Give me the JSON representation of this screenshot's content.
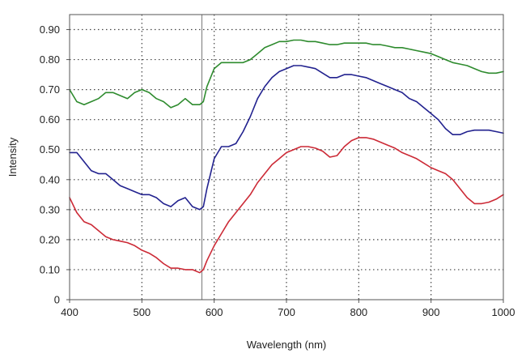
{
  "chart_data": {
    "type": "line",
    "title": "",
    "xlabel": "Wavelength (nm)",
    "ylabel": "Intensity",
    "xlim": [
      400,
      1000
    ],
    "ylim": [
      0,
      0.95
    ],
    "xticks": [
      400,
      500,
      600,
      700,
      800,
      900,
      1000
    ],
    "xtick_labels": [
      "400",
      "500",
      "600",
      "700",
      "800",
      "900",
      "1000"
    ],
    "yticks": [
      0,
      0.1,
      0.2,
      0.3,
      0.4,
      0.5,
      0.6,
      0.7,
      0.8,
      0.9
    ],
    "ytick_labels": [
      "0",
      "0.10",
      "0.20",
      "0.30",
      "0.40",
      "0.50",
      "0.60",
      "0.70",
      "0.80",
      "0.90"
    ],
    "grid": true,
    "reference_line_x": 583,
    "series": [
      {
        "color": "#2e8b2e",
        "x": [
          400,
          410,
          420,
          430,
          440,
          450,
          460,
          470,
          480,
          490,
          500,
          510,
          520,
          530,
          540,
          550,
          560,
          570,
          580,
          585,
          590,
          600,
          610,
          620,
          630,
          640,
          650,
          660,
          670,
          680,
          690,
          700,
          710,
          720,
          730,
          740,
          750,
          760,
          770,
          780,
          790,
          800,
          810,
          820,
          830,
          840,
          850,
          860,
          870,
          880,
          890,
          900,
          910,
          920,
          930,
          940,
          950,
          960,
          970,
          980,
          990,
          1000
        ],
        "y": [
          0.7,
          0.66,
          0.65,
          0.66,
          0.67,
          0.69,
          0.69,
          0.68,
          0.67,
          0.69,
          0.7,
          0.69,
          0.67,
          0.66,
          0.64,
          0.65,
          0.67,
          0.65,
          0.65,
          0.66,
          0.71,
          0.77,
          0.79,
          0.79,
          0.79,
          0.79,
          0.8,
          0.82,
          0.84,
          0.85,
          0.86,
          0.86,
          0.865,
          0.865,
          0.86,
          0.86,
          0.855,
          0.85,
          0.85,
          0.855,
          0.855,
          0.855,
          0.855,
          0.85,
          0.85,
          0.845,
          0.84,
          0.84,
          0.835,
          0.83,
          0.825,
          0.82,
          0.81,
          0.8,
          0.79,
          0.785,
          0.78,
          0.77,
          0.76,
          0.755,
          0.755,
          0.76
        ]
      },
      {
        "color": "#22228f",
        "x": [
          400,
          410,
          420,
          430,
          440,
          450,
          460,
          470,
          480,
          490,
          500,
          510,
          520,
          530,
          540,
          550,
          560,
          570,
          580,
          585,
          590,
          600,
          610,
          620,
          630,
          640,
          650,
          660,
          670,
          680,
          690,
          700,
          710,
          720,
          730,
          740,
          750,
          760,
          770,
          780,
          790,
          800,
          810,
          820,
          830,
          840,
          850,
          860,
          870,
          880,
          890,
          900,
          910,
          920,
          930,
          940,
          950,
          960,
          970,
          980,
          990,
          1000
        ],
        "y": [
          0.49,
          0.49,
          0.46,
          0.43,
          0.42,
          0.42,
          0.4,
          0.38,
          0.37,
          0.36,
          0.35,
          0.35,
          0.34,
          0.32,
          0.31,
          0.33,
          0.34,
          0.31,
          0.3,
          0.31,
          0.37,
          0.47,
          0.51,
          0.51,
          0.52,
          0.56,
          0.61,
          0.67,
          0.71,
          0.74,
          0.76,
          0.77,
          0.78,
          0.78,
          0.775,
          0.77,
          0.755,
          0.74,
          0.74,
          0.75,
          0.75,
          0.745,
          0.74,
          0.73,
          0.72,
          0.71,
          0.7,
          0.69,
          0.67,
          0.66,
          0.64,
          0.62,
          0.6,
          0.57,
          0.55,
          0.55,
          0.56,
          0.565,
          0.565,
          0.565,
          0.56,
          0.555
        ]
      },
      {
        "color": "#cc2a36",
        "x": [
          400,
          410,
          420,
          430,
          440,
          450,
          460,
          470,
          480,
          490,
          500,
          510,
          520,
          530,
          540,
          550,
          560,
          570,
          580,
          585,
          590,
          600,
          610,
          620,
          630,
          640,
          650,
          660,
          670,
          680,
          690,
          700,
          710,
          720,
          730,
          740,
          750,
          760,
          770,
          780,
          790,
          800,
          810,
          820,
          830,
          840,
          850,
          860,
          870,
          880,
          890,
          900,
          910,
          920,
          930,
          940,
          950,
          960,
          970,
          980,
          990,
          1000
        ],
        "y": [
          0.34,
          0.29,
          0.26,
          0.25,
          0.23,
          0.21,
          0.2,
          0.195,
          0.19,
          0.18,
          0.165,
          0.155,
          0.14,
          0.12,
          0.105,
          0.105,
          0.1,
          0.1,
          0.09,
          0.1,
          0.13,
          0.18,
          0.22,
          0.26,
          0.29,
          0.32,
          0.35,
          0.39,
          0.42,
          0.45,
          0.47,
          0.49,
          0.5,
          0.51,
          0.51,
          0.505,
          0.495,
          0.475,
          0.48,
          0.51,
          0.53,
          0.54,
          0.54,
          0.535,
          0.525,
          0.515,
          0.505,
          0.49,
          0.48,
          0.47,
          0.455,
          0.44,
          0.43,
          0.42,
          0.4,
          0.37,
          0.34,
          0.32,
          0.32,
          0.325,
          0.335,
          0.35
        ]
      }
    ]
  }
}
